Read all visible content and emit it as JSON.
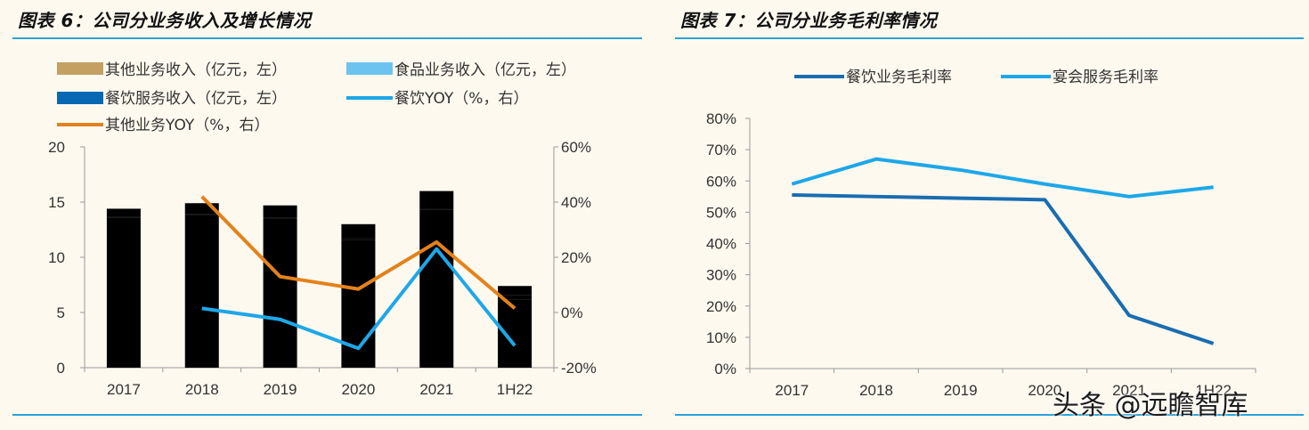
{
  "colors": {
    "background": "#FDF9EF",
    "rule": "#2BA3D9",
    "other_business": "#C4A063",
    "food_business": "#6DC3F0",
    "catering_business": "#0868B4",
    "catering_yoy": "#1EA7E8",
    "other_yoy": "#E3821C",
    "catering_margin": "#1A6DB0",
    "banquet_margin": "#1EA7E8"
  },
  "watermark": "头条 @远瞻智库",
  "chart_data": [
    {
      "type": "bar",
      "title": "图表 6：公司分业务收入及增长情况",
      "categories": [
        "2017",
        "2018",
        "2019",
        "2020",
        "2021",
        "1H22"
      ],
      "stacked": true,
      "y_left": {
        "min": 0,
        "max": 20,
        "step": 5,
        "ticks": [
          "0",
          "5",
          "10",
          "15",
          "20"
        ]
      },
      "y_right": {
        "min": -20,
        "max": 60,
        "step": 20,
        "ticks": [
          "-20%",
          "0%",
          "20%",
          "40%",
          "60%"
        ]
      },
      "legend": {
        "other_rev": "其他业务收入（亿元，左）",
        "food_rev": "食品业务收入（亿元，左）",
        "catering_rev": "餐饮服务收入（亿元，左）",
        "catering_yoy": "餐饮YOY（%，右）",
        "other_yoy": "其他业务YOY（%，右）"
      },
      "series": [
        {
          "key": "catering_rev",
          "name": "餐饮服务收入（亿元，左）",
          "axis": "left",
          "kind": "bar",
          "values": [
            13.6,
            13.8,
            13.5,
            11.6,
            14.3,
            6.2
          ]
        },
        {
          "key": "food_rev",
          "name": "食品业务收入（亿元，左）",
          "axis": "left",
          "kind": "bar",
          "values": [
            0.1,
            0.1,
            0.1,
            0.1,
            0.1,
            0.4
          ]
        },
        {
          "key": "other_rev",
          "name": "其他业务收入（亿元，左）",
          "axis": "left",
          "kind": "bar",
          "values": [
            0.7,
            1.0,
            1.1,
            1.3,
            1.6,
            0.8
          ]
        },
        {
          "key": "catering_yoy",
          "name": "餐饮YOY（%，右）",
          "axis": "right",
          "kind": "line",
          "values": [
            null,
            1.5,
            -2.5,
            -13,
            23,
            -12
          ]
        },
        {
          "key": "other_yoy",
          "name": "其他业务YOY（%，右）",
          "axis": "right",
          "kind": "line",
          "values": [
            null,
            42,
            13,
            8.5,
            25.5,
            1.5
          ]
        }
      ]
    },
    {
      "type": "line",
      "title": "图表 7：公司分业务毛利率情况",
      "categories": [
        "2017",
        "2018",
        "2019",
        "2020",
        "2021",
        "1H22"
      ],
      "y": {
        "min": 0,
        "max": 80,
        "step": 10,
        "ticks": [
          "0%",
          "10%",
          "20%",
          "30%",
          "40%",
          "50%",
          "60%",
          "70%",
          "80%"
        ]
      },
      "series": [
        {
          "key": "catering_margin",
          "name": "餐饮业务毛利率",
          "values": [
            55.5,
            55,
            54.5,
            54,
            17,
            8
          ]
        },
        {
          "key": "banquet_margin",
          "name": "宴会服务毛利率",
          "values": [
            59,
            67,
            63.5,
            59,
            55,
            58
          ]
        }
      ]
    }
  ]
}
